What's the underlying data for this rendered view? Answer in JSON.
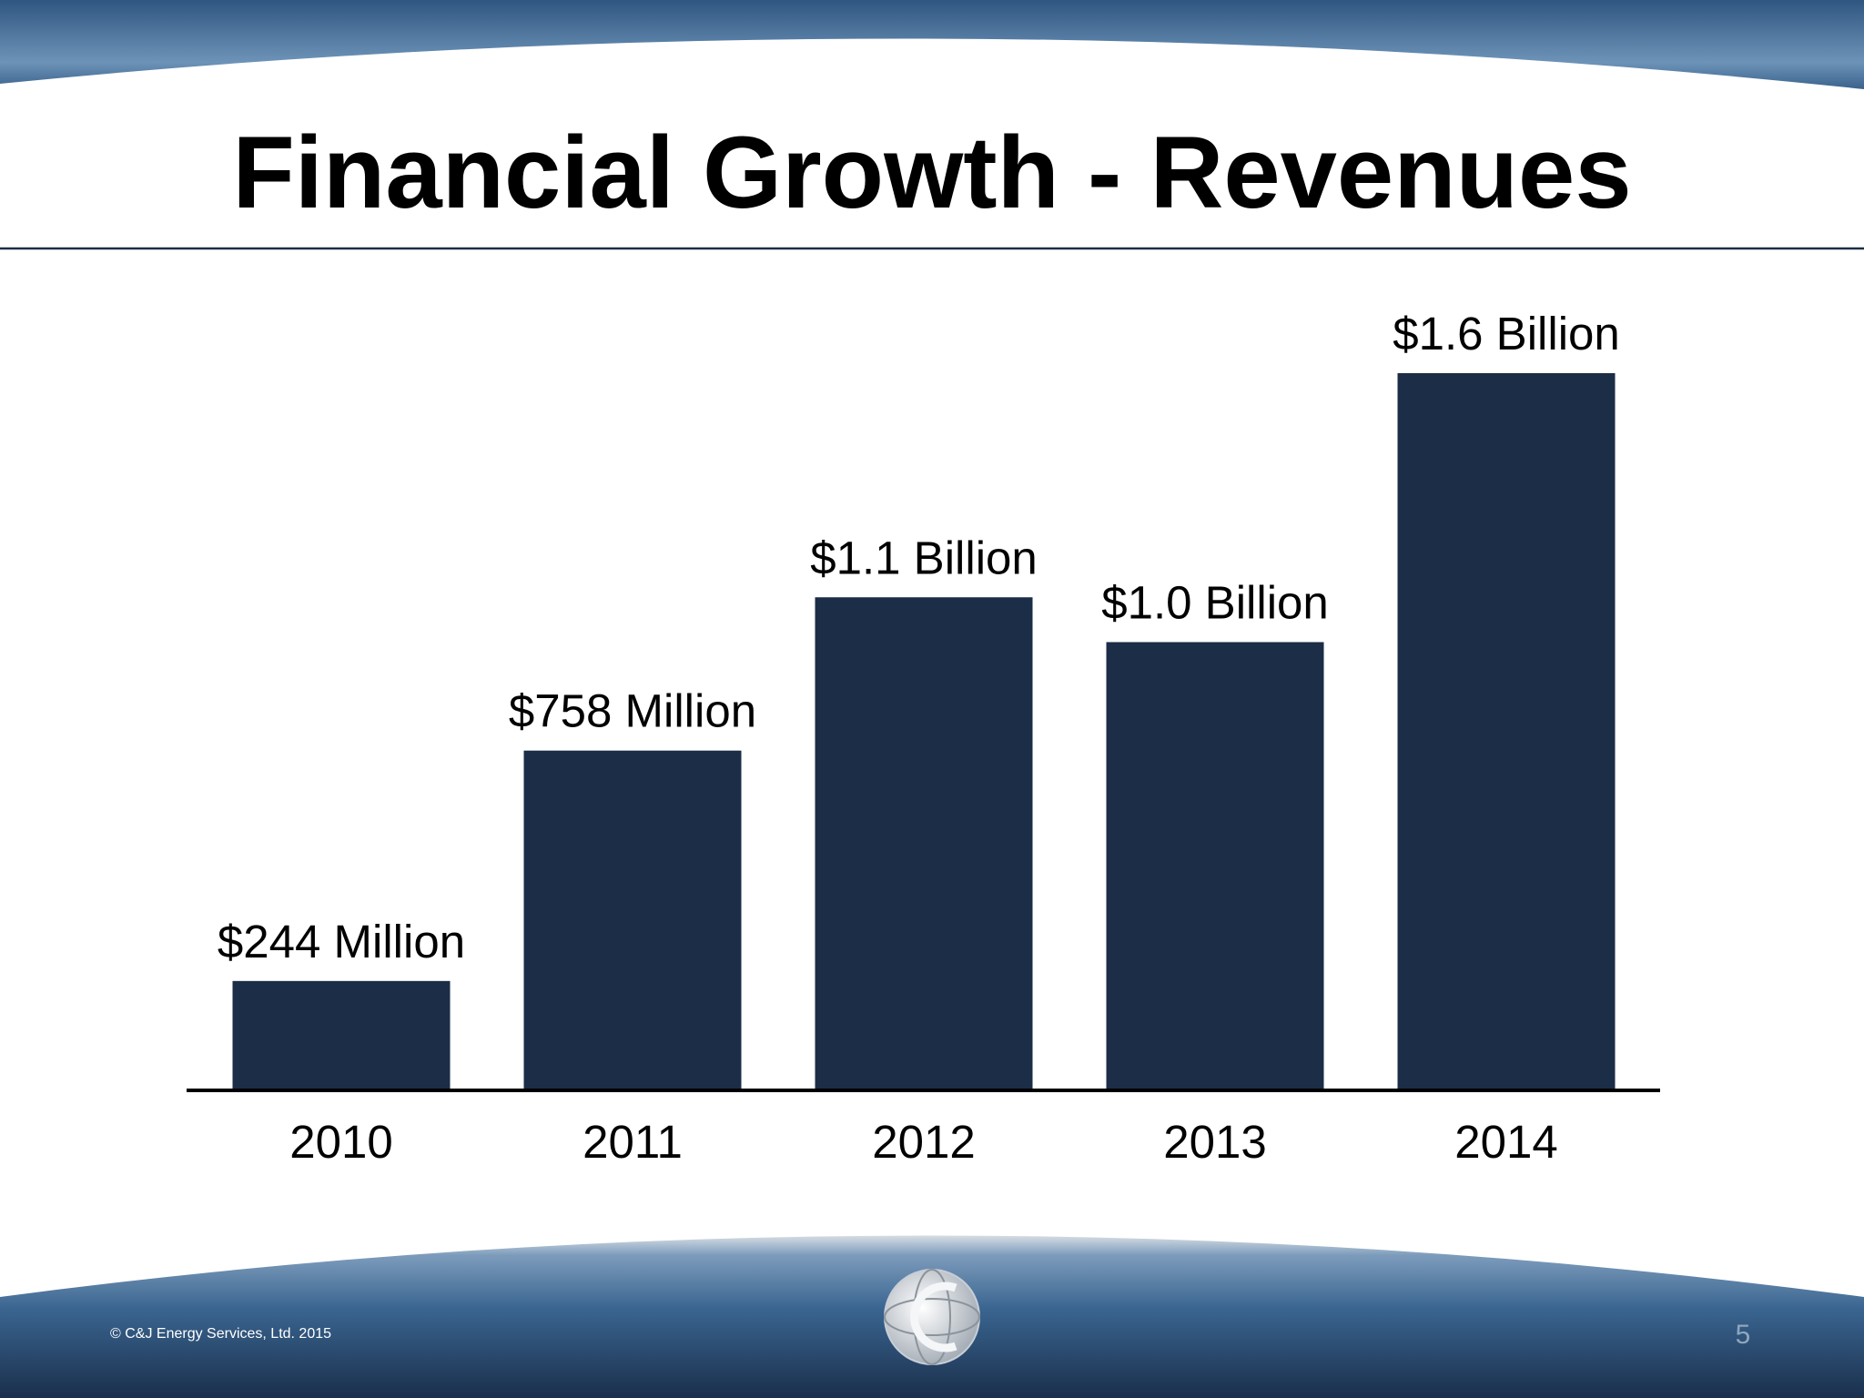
{
  "chart_data": {
    "type": "bar",
    "title": "Financial Growth - Revenues",
    "categories": [
      "2010",
      "2011",
      "2012",
      "2013",
      "2014"
    ],
    "values": [
      244,
      758,
      1100,
      1000,
      1600
    ],
    "value_labels": [
      "$244 Million",
      "$758 Million",
      "$1.1 Billion",
      "$1.0 Billion",
      "$1.6 Billion"
    ],
    "color": "#1b2d47"
  },
  "footer": {
    "copyright": "© C&J Energy Services, Ltd. 2015",
    "page_number": "5"
  }
}
